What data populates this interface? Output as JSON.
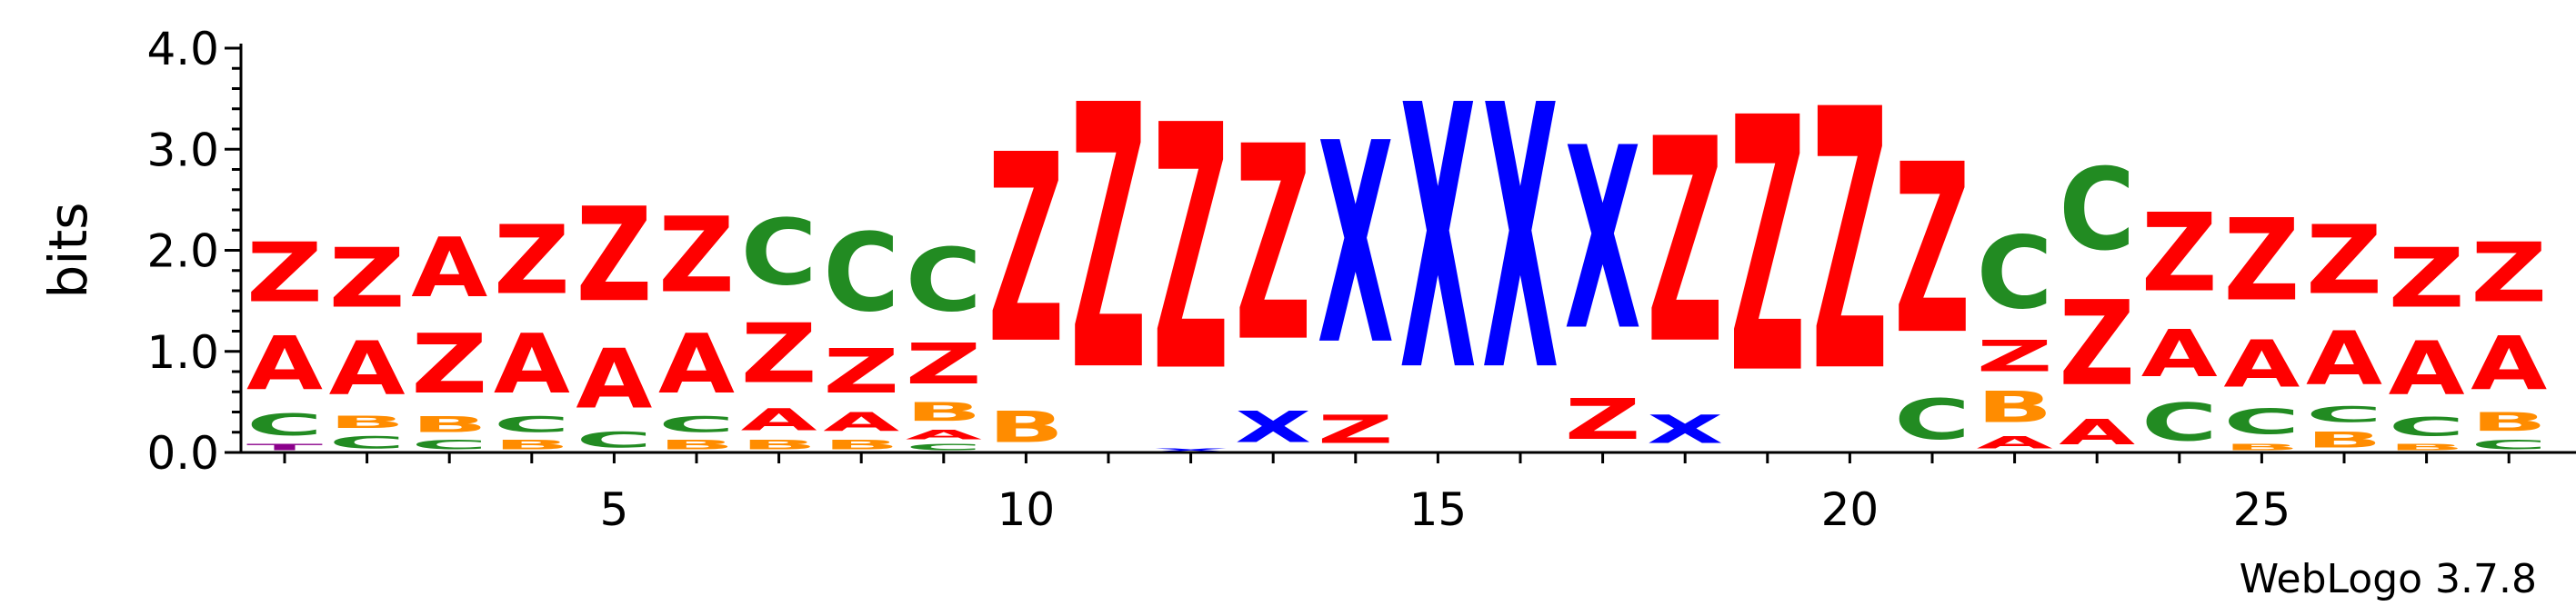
{
  "chart_data": {
    "type": "sequence-logo",
    "title": "",
    "xlabel": "",
    "ylabel": "bits",
    "ylim": [
      0,
      4.2
    ],
    "y_ticks": [
      "0.0",
      "1.0",
      "2.0",
      "3.0",
      "4.0"
    ],
    "x_ticks": [
      5,
      10,
      15,
      20,
      25
    ],
    "credit": "WebLogo 3.7.8",
    "colors": {
      "Z": "#ff0000",
      "A": "#ff0000",
      "X": "#0000ff",
      "C": "#228b22",
      "B": "#ff8c00",
      "T": "#8b008b"
    },
    "positions": [
      {
        "pos": 1,
        "stack": [
          [
            "T",
            0.1
          ],
          [
            "C",
            0.35
          ],
          [
            "A",
            0.85
          ],
          [
            "Z",
            0.95
          ]
        ]
      },
      {
        "pos": 2,
        "stack": [
          [
            "C",
            0.2
          ],
          [
            "B",
            0.2
          ],
          [
            "A",
            0.85
          ],
          [
            "Z",
            0.95
          ]
        ]
      },
      {
        "pos": 3,
        "stack": [
          [
            "C",
            0.15
          ],
          [
            "B",
            0.25
          ],
          [
            "Z",
            0.95
          ],
          [
            "A",
            0.95
          ]
        ]
      },
      {
        "pos": 4,
        "stack": [
          [
            "B",
            0.15
          ],
          [
            "C",
            0.25
          ],
          [
            "A",
            0.95
          ],
          [
            "Z",
            1.1
          ]
        ]
      },
      {
        "pos": 5,
        "stack": [
          [
            "C",
            0.25
          ],
          [
            "A",
            0.95
          ],
          [
            "Z",
            1.5
          ]
        ]
      },
      {
        "pos": 6,
        "stack": [
          [
            "B",
            0.15
          ],
          [
            "C",
            0.25
          ],
          [
            "A",
            0.95
          ],
          [
            "Z",
            1.2
          ]
        ]
      },
      {
        "pos": 7,
        "stack": [
          [
            "B",
            0.15
          ],
          [
            "A",
            0.35
          ],
          [
            "Z",
            0.95
          ],
          [
            "C",
            1.05
          ]
        ]
      },
      {
        "pos": 8,
        "stack": [
          [
            "B",
            0.15
          ],
          [
            "A",
            0.3
          ],
          [
            "Z",
            0.7
          ],
          [
            "C",
            1.25
          ]
        ]
      },
      {
        "pos": 9,
        "stack": [
          [
            "C",
            0.1
          ],
          [
            "A",
            0.15
          ],
          [
            "B",
            0.3
          ],
          [
            "Z",
            0.65
          ],
          [
            "C",
            1.0
          ]
        ]
      },
      {
        "pos": 10,
        "stack": [
          [
            "B",
            0.5
          ],
          [
            "Z",
            3.0
          ]
        ]
      },
      {
        "pos": 11,
        "stack": [
          [
            "Z",
            4.2
          ]
        ]
      },
      {
        "pos": 12,
        "stack": [
          [
            "X",
            0.05
          ],
          [
            "Z",
            3.9
          ]
        ]
      },
      {
        "pos": 13,
        "stack": [
          [
            "X",
            0.5
          ],
          [
            "Z",
            3.1
          ]
        ]
      },
      {
        "pos": 14,
        "stack": [
          [
            "Z",
            0.45
          ],
          [
            "X",
            3.2
          ]
        ]
      },
      {
        "pos": 15,
        "stack": [
          [
            "X",
            4.2
          ]
        ]
      },
      {
        "pos": 16,
        "stack": [
          [
            "X",
            4.2
          ]
        ]
      },
      {
        "pos": 17,
        "stack": [
          [
            "Z",
            0.65
          ],
          [
            "X",
            2.9
          ]
        ]
      },
      {
        "pos": 18,
        "stack": [
          [
            "X",
            0.45
          ],
          [
            "Z",
            3.25
          ]
        ]
      },
      {
        "pos": 19,
        "stack": [
          [
            "Z",
            4.05
          ]
        ]
      },
      {
        "pos": 20,
        "stack": [
          [
            "Z",
            4.15
          ]
        ]
      },
      {
        "pos": 21,
        "stack": [
          [
            "C",
            0.65
          ],
          [
            "Z",
            2.7
          ]
        ]
      },
      {
        "pos": 22,
        "stack": [
          [
            "A",
            0.2
          ],
          [
            "B",
            0.5
          ],
          [
            "Z",
            0.5
          ],
          [
            "C",
            1.15
          ]
        ]
      },
      {
        "pos": 23,
        "stack": [
          [
            "A",
            0.4
          ],
          [
            "Z",
            1.35
          ],
          [
            "C",
            1.3
          ]
        ]
      },
      {
        "pos": 24,
        "stack": [
          [
            "C",
            0.6
          ],
          [
            "A",
            0.75
          ],
          [
            "Z",
            1.25
          ]
        ]
      },
      {
        "pos": 25,
        "stack": [
          [
            "B",
            0.1
          ],
          [
            "C",
            0.4
          ],
          [
            "A",
            0.75
          ],
          [
            "Z",
            1.3
          ]
        ]
      },
      {
        "pos": 26,
        "stack": [
          [
            "B",
            0.25
          ],
          [
            "C",
            0.25
          ],
          [
            "A",
            0.85
          ],
          [
            "Z",
            1.1
          ]
        ]
      },
      {
        "pos": 27,
        "stack": [
          [
            "B",
            0.1
          ],
          [
            "C",
            0.3
          ],
          [
            "A",
            0.85
          ],
          [
            "Z",
            0.95
          ]
        ]
      },
      {
        "pos": 28,
        "stack": [
          [
            "C",
            0.15
          ],
          [
            "B",
            0.3
          ],
          [
            "A",
            0.85
          ],
          [
            "Z",
            0.95
          ]
        ]
      }
    ]
  }
}
